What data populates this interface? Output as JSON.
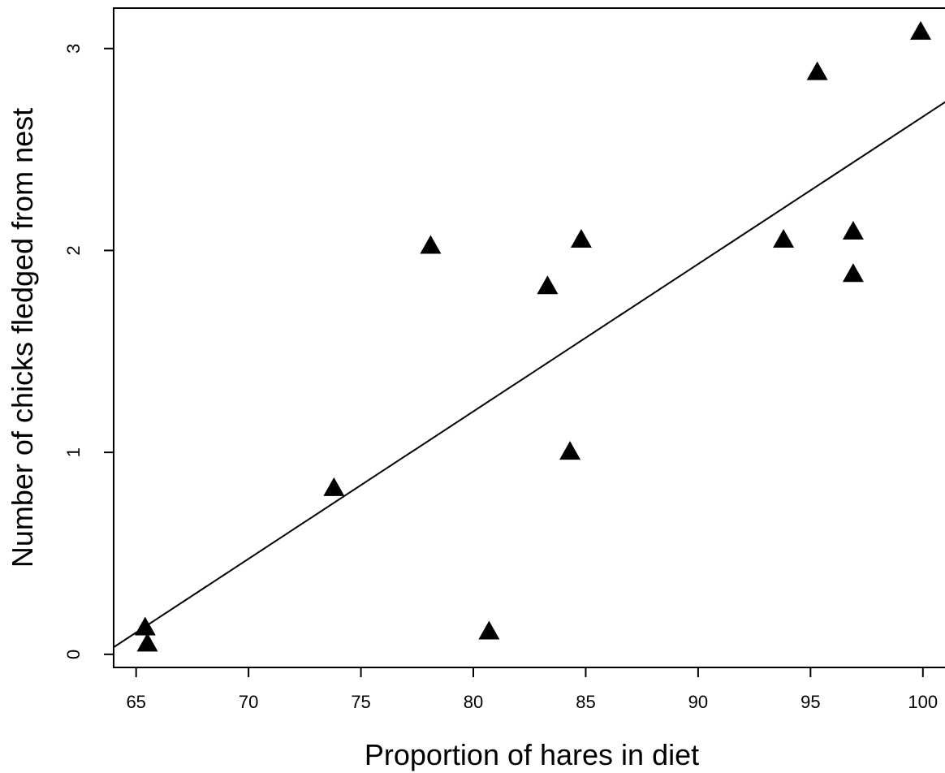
{
  "chart_data": {
    "type": "scatter",
    "xlabel": "Proportion of hares in diet",
    "ylabel": "Number of chicks fledged from nest",
    "xlim": [
      64,
      101.2
    ],
    "ylim": [
      -0.065,
      3.2
    ],
    "xticks": [
      65,
      70,
      75,
      80,
      85,
      90,
      95,
      100
    ],
    "yticks": [
      0,
      1,
      2,
      3
    ],
    "marker": "filled-triangle",
    "points": [
      {
        "x": 65.4,
        "y": 0.13
      },
      {
        "x": 65.5,
        "y": 0.05
      },
      {
        "x": 73.8,
        "y": 0.82
      },
      {
        "x": 78.1,
        "y": 2.02
      },
      {
        "x": 80.7,
        "y": 0.11
      },
      {
        "x": 83.3,
        "y": 1.82
      },
      {
        "x": 84.3,
        "y": 1.0
      },
      {
        "x": 84.8,
        "y": 2.05
      },
      {
        "x": 93.8,
        "y": 2.05
      },
      {
        "x": 95.3,
        "y": 2.88
      },
      {
        "x": 96.9,
        "y": 2.09
      },
      {
        "x": 96.9,
        "y": 1.88
      },
      {
        "x": 99.9,
        "y": 3.08
      }
    ],
    "fit_line": {
      "x": [
        64,
        101.2
      ],
      "y": [
        0.035,
        2.75
      ]
    },
    "grid": false,
    "colors": {
      "marker": "#000000",
      "line": "#000000",
      "axes": "#000000"
    }
  }
}
